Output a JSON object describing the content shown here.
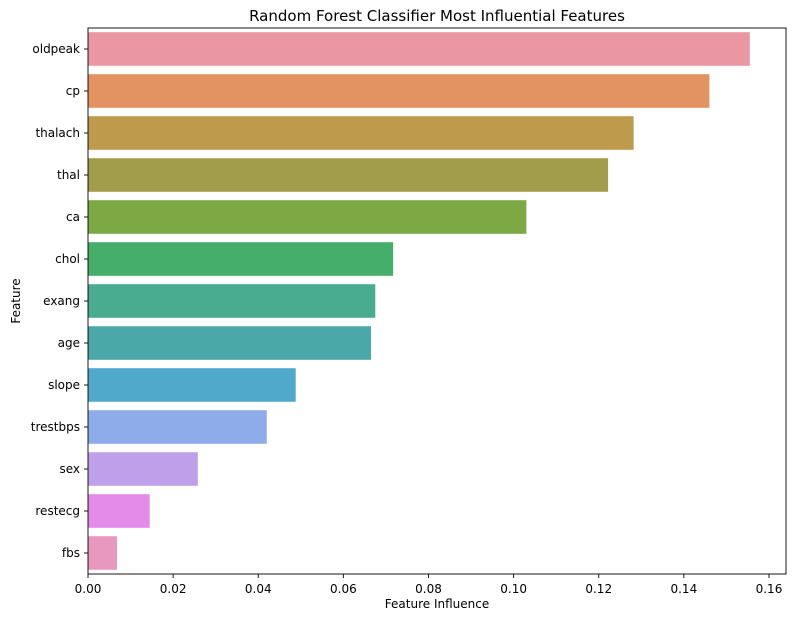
{
  "chart_data": {
    "type": "bar",
    "orientation": "horizontal",
    "title": "Random Forest Classifier Most Influential Features",
    "xlabel": "Feature Influence",
    "ylabel": "Feature",
    "xlim": [
      0,
      0.164
    ],
    "xticks": [
      0.0,
      0.02,
      0.04,
      0.06,
      0.08,
      0.1,
      0.12,
      0.14,
      0.16
    ],
    "xtick_labels": [
      "0.00",
      "0.02",
      "0.04",
      "0.06",
      "0.08",
      "0.10",
      "0.12",
      "0.14",
      "0.16"
    ],
    "grid": false,
    "categories": [
      "oldpeak",
      "cp",
      "thalach",
      "thal",
      "ca",
      "chol",
      "exang",
      "age",
      "slope",
      "trestbps",
      "sex",
      "restecg",
      "fbs"
    ],
    "values": [
      0.1555,
      0.146,
      0.1282,
      0.1222,
      0.103,
      0.0717,
      0.0675,
      0.0665,
      0.0488,
      0.042,
      0.0258,
      0.0145,
      0.0068
    ],
    "colors": [
      "#EA96A3",
      "#E39361",
      "#BD9A4C",
      "#A19D4B",
      "#7DA945",
      "#45AE6B",
      "#49AB8F",
      "#4AA8A8",
      "#50A9CA",
      "#8DACE9",
      "#C09FEA",
      "#E48AE9",
      "#E897BE"
    ]
  }
}
